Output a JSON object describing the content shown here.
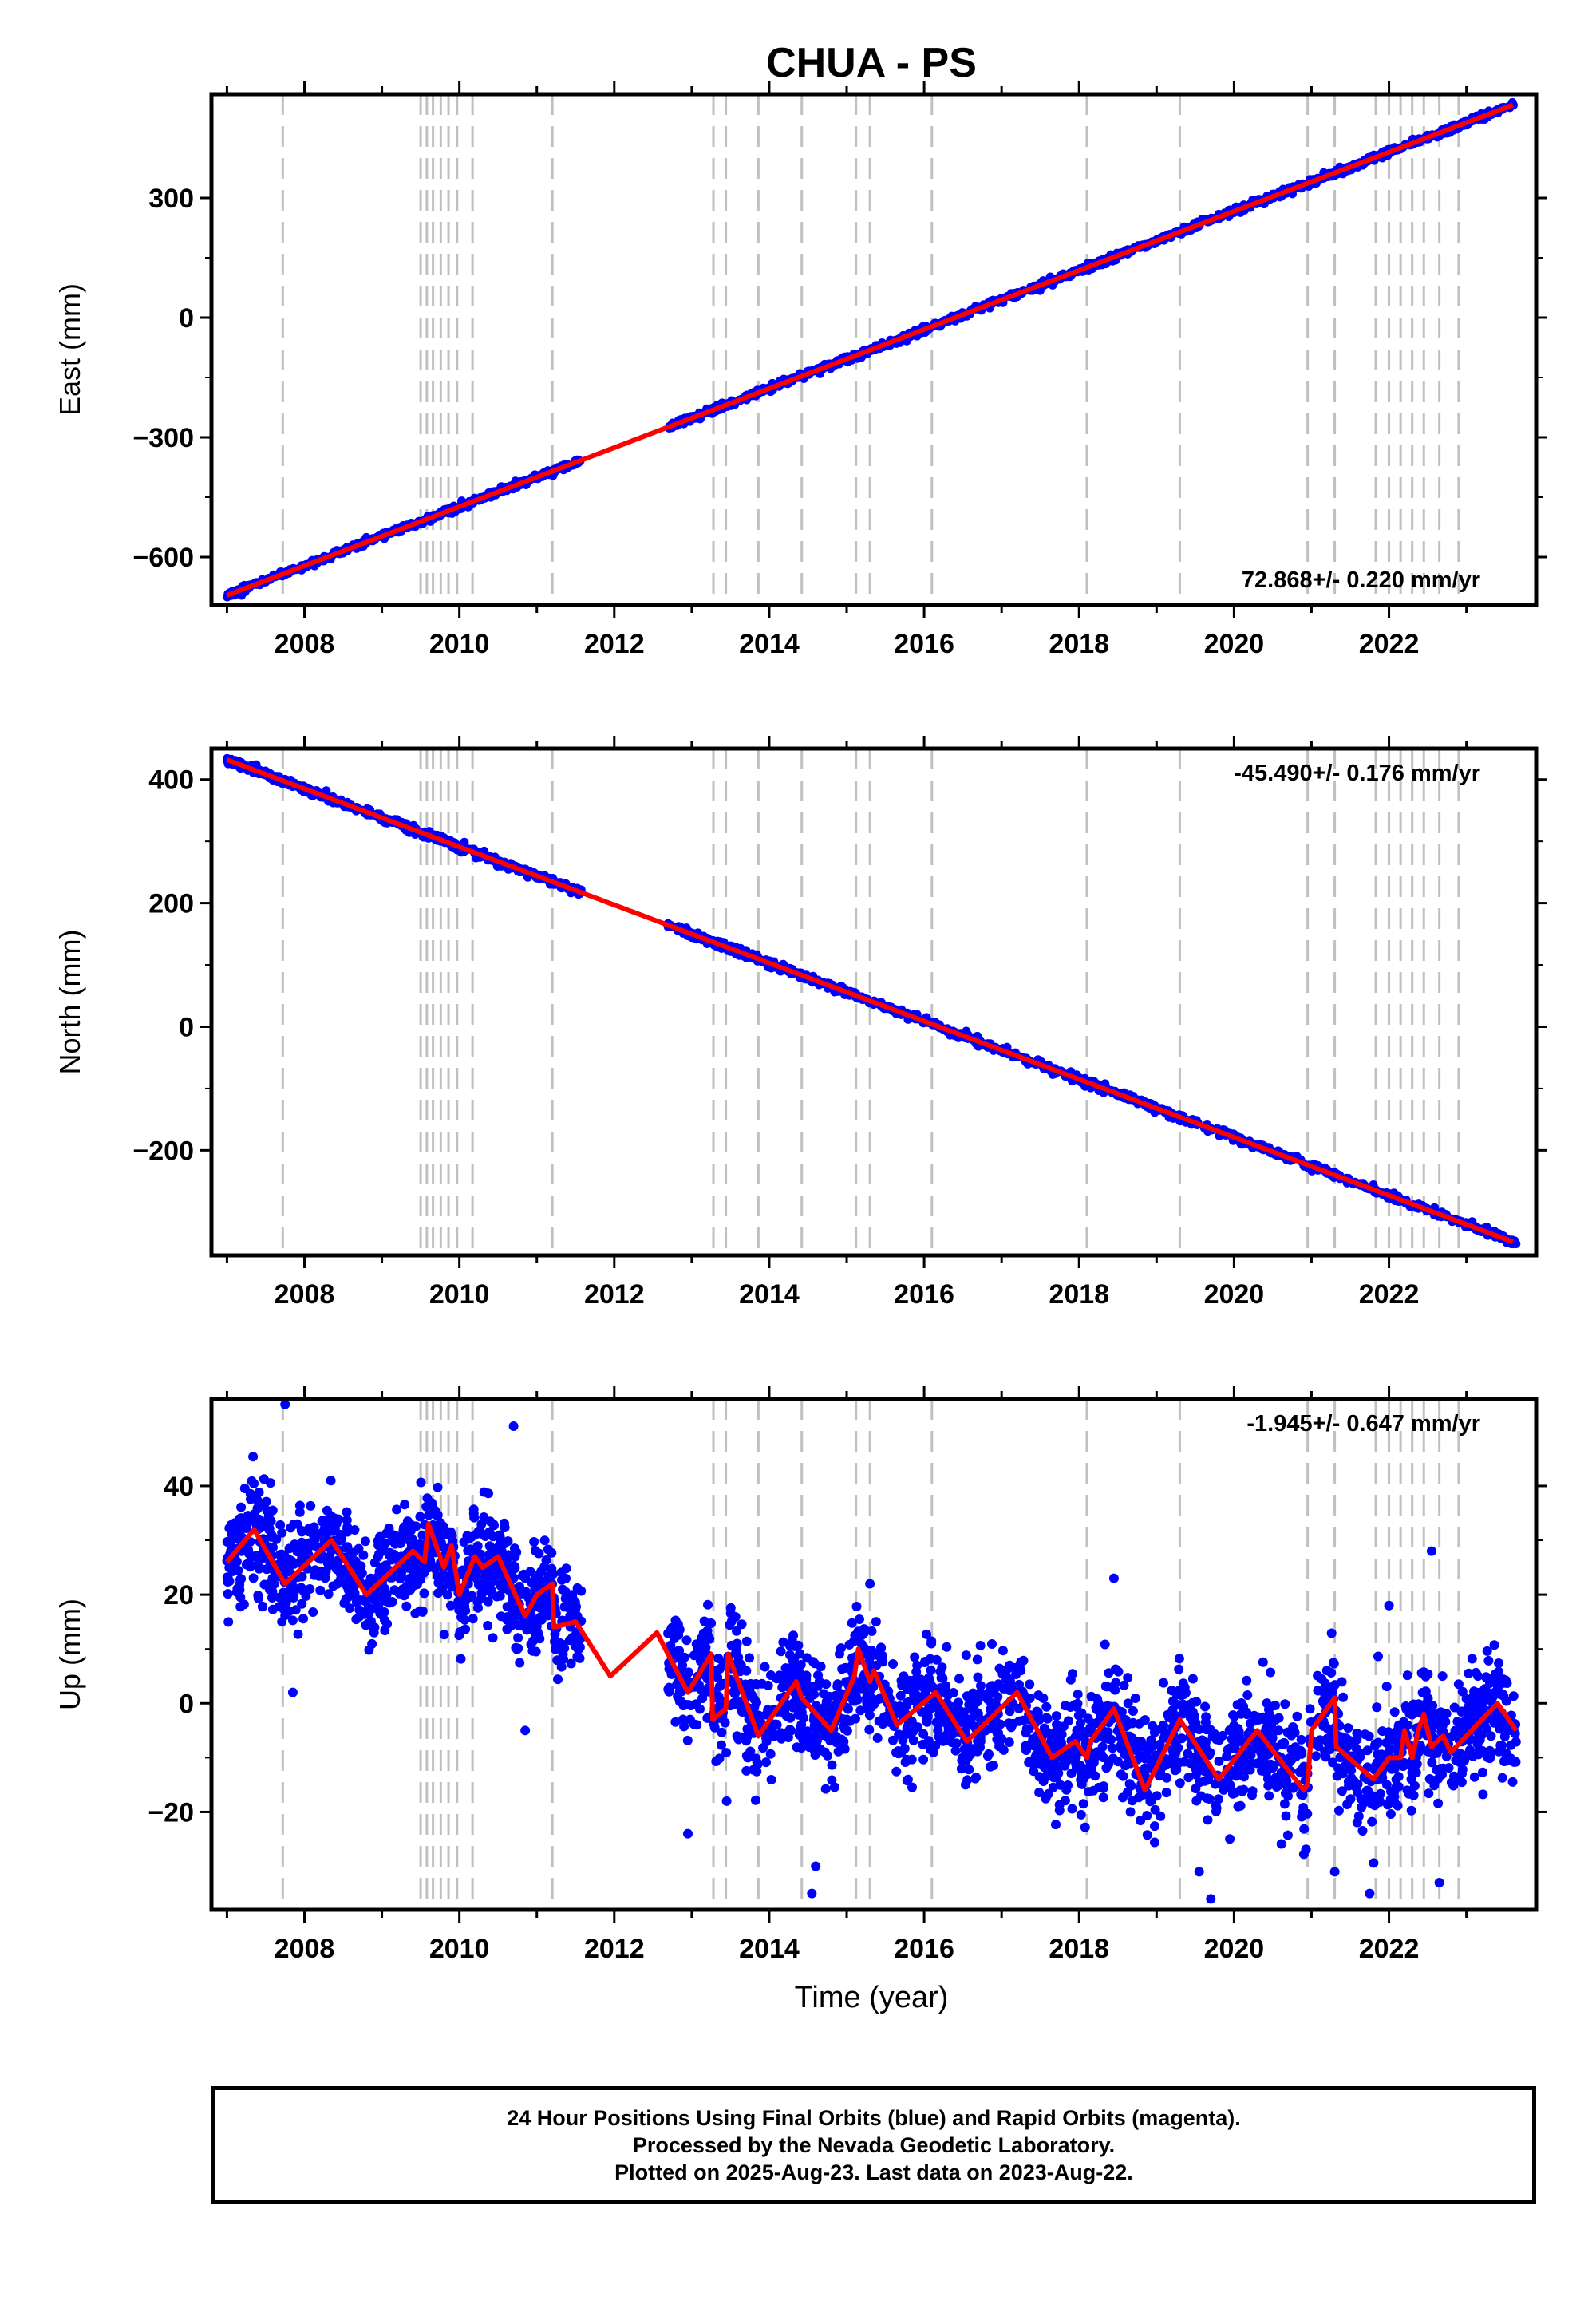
{
  "title": "CHUA - PS",
  "colors": {
    "final_orbits": "#0000ff",
    "model_fit": "#ff0000",
    "event_lines": "#c0c0c0",
    "frame": "#000000"
  },
  "x_axis": {
    "label": "Time (year)",
    "range": [
      2006.8,
      2023.9
    ],
    "tick_labels": [
      "2008",
      "2010",
      "2012",
      "2014",
      "2016",
      "2018",
      "2020",
      "2022"
    ]
  },
  "event_years": [
    2007.72,
    2009.5,
    2009.58,
    2009.66,
    2009.76,
    2009.86,
    2009.97,
    2010.17,
    2011.2,
    2013.28,
    2013.44,
    2013.86,
    2014.42,
    2015.12,
    2015.3,
    2016.1,
    2018.1,
    2019.3,
    2020.95,
    2021.3,
    2021.83,
    2022.0,
    2022.15,
    2022.3,
    2022.45,
    2022.65,
    2022.9
  ],
  "chart_data": [
    {
      "type": "scatter",
      "name": "east",
      "ylabel": "East (mm)",
      "ylim": [
        -720,
        560
      ],
      "y_tick_labels": [
        "300",
        "0",
        "−300",
        "−600"
      ],
      "y_ticks": [
        300,
        0,
        -300,
        -600
      ],
      "rate_label": "72.868+/- 0.220 mm/yr",
      "rate_mm_per_yr": 72.868,
      "rate_sigma": 0.22,
      "gap": [
        2011.58,
        2012.68
      ],
      "data_range": [
        2007.0,
        2023.64
      ],
      "endpoints": {
        "start": [
          2007.0,
          -696
        ],
        "end": [
          2023.64,
          536
        ]
      },
      "scatter_mm": 4,
      "series": [
        {
          "name": "24 hour positions (final orbits)",
          "color": "#0000ff"
        },
        {
          "name": "model fit",
          "color": "#ff0000"
        }
      ]
    },
    {
      "type": "scatter",
      "name": "north",
      "ylabel": "North (mm)",
      "ylim": [
        -370,
        450
      ],
      "y_tick_labels": [
        "400",
        "200",
        "0",
        "−200"
      ],
      "y_ticks": [
        400,
        200,
        0,
        -200
      ],
      "rate_label": "-45.490+/- 0.176 mm/yr",
      "rate_mm_per_yr": -45.49,
      "rate_sigma": 0.176,
      "gap": [
        2011.58,
        2012.68
      ],
      "data_range": [
        2007.0,
        2023.64
      ],
      "endpoints": {
        "start": [
          2007.0,
          432
        ],
        "end": [
          2023.64,
          -350
        ]
      },
      "scatter_mm": 3,
      "series": [
        {
          "name": "24 hour positions (final orbits)",
          "color": "#0000ff"
        },
        {
          "name": "model fit",
          "color": "#ff0000"
        }
      ]
    },
    {
      "type": "scatter",
      "name": "up",
      "ylabel": "Up (mm)",
      "ylim": [
        -38,
        56
      ],
      "y_tick_labels": [
        "40",
        "20",
        "0",
        "−20"
      ],
      "y_ticks": [
        40,
        20,
        0,
        -20
      ],
      "rate_label": "-1.945+/- 0.647 mm/yr",
      "rate_mm_per_yr": -1.945,
      "rate_sigma": 0.647,
      "gap": [
        2011.58,
        2012.68
      ],
      "data_range": [
        2007.0,
        2023.64
      ],
      "scatter_mm": 5,
      "fit_points": [
        [
          2007.0,
          26
        ],
        [
          2007.35,
          32
        ],
        [
          2007.75,
          22
        ],
        [
          2008.35,
          30
        ],
        [
          2008.8,
          20
        ],
        [
          2009.4,
          28
        ],
        [
          2009.55,
          26
        ],
        [
          2009.6,
          33
        ],
        [
          2009.8,
          25
        ],
        [
          2009.9,
          29
        ],
        [
          2010.0,
          20
        ],
        [
          2010.2,
          27
        ],
        [
          2010.3,
          25
        ],
        [
          2010.5,
          27
        ],
        [
          2010.85,
          16
        ],
        [
          2011.0,
          20
        ],
        [
          2011.2,
          22
        ],
        [
          2011.22,
          14
        ],
        [
          2011.5,
          15
        ],
        [
          2011.95,
          5
        ],
        [
          2012.55,
          13
        ],
        [
          2012.95,
          2
        ],
        [
          2013.25,
          9
        ],
        [
          2013.27,
          -3
        ],
        [
          2013.44,
          -1
        ],
        [
          2013.47,
          9
        ],
        [
          2013.86,
          -6
        ],
        [
          2014.35,
          4
        ],
        [
          2014.42,
          1
        ],
        [
          2014.8,
          -5
        ],
        [
          2015.1,
          5
        ],
        [
          2015.15,
          10
        ],
        [
          2015.3,
          4
        ],
        [
          2015.35,
          6
        ],
        [
          2015.65,
          -4
        ],
        [
          2016.15,
          2
        ],
        [
          2016.55,
          -7
        ],
        [
          2017.2,
          2
        ],
        [
          2017.65,
          -10
        ],
        [
          2017.95,
          -7
        ],
        [
          2018.1,
          -10
        ],
        [
          2018.15,
          -7
        ],
        [
          2018.45,
          -1
        ],
        [
          2018.85,
          -16
        ],
        [
          2019.3,
          -3
        ],
        [
          2019.8,
          -14
        ],
        [
          2020.3,
          -5
        ],
        [
          2020.9,
          -16
        ],
        [
          2020.95,
          -15
        ],
        [
          2021.0,
          -5
        ],
        [
          2021.3,
          1
        ],
        [
          2021.32,
          -8
        ],
        [
          2021.8,
          -14
        ],
        [
          2022.0,
          -10
        ],
        [
          2022.15,
          -10
        ],
        [
          2022.2,
          -5
        ],
        [
          2022.3,
          -10
        ],
        [
          2022.38,
          -5
        ],
        [
          2022.45,
          -2
        ],
        [
          2022.55,
          -8
        ],
        [
          2022.7,
          -6
        ],
        [
          2022.8,
          -9
        ],
        [
          2023.4,
          0
        ],
        [
          2023.64,
          -5
        ]
      ],
      "outliers": [
        [
          2007.75,
          55
        ],
        [
          2007.85,
          2
        ],
        [
          2010.7,
          51
        ],
        [
          2010.85,
          -5
        ],
        [
          2012.95,
          -24
        ],
        [
          2013.45,
          -18
        ],
        [
          2014.55,
          -35
        ],
        [
          2014.6,
          -30
        ],
        [
          2015.3,
          22
        ],
        [
          2018.45,
          23
        ],
        [
          2019.55,
          -31
        ],
        [
          2019.7,
          -36
        ],
        [
          2021.3,
          -31
        ],
        [
          2021.75,
          -35
        ],
        [
          2022.55,
          28
        ],
        [
          2022.65,
          -33
        ],
        [
          2022.0,
          18
        ]
      ],
      "series": [
        {
          "name": "24 hour positions (final orbits)",
          "color": "#0000ff"
        },
        {
          "name": "model fit",
          "color": "#ff0000"
        }
      ]
    }
  ],
  "footer": {
    "line1": "24 Hour Positions Using Final Orbits (blue) and Rapid Orbits (magenta).",
    "line2": "Processed by the Nevada Geodetic Laboratory.",
    "line3": "Plotted on 2025-Aug-23. Last data on 2023-Aug-22."
  }
}
